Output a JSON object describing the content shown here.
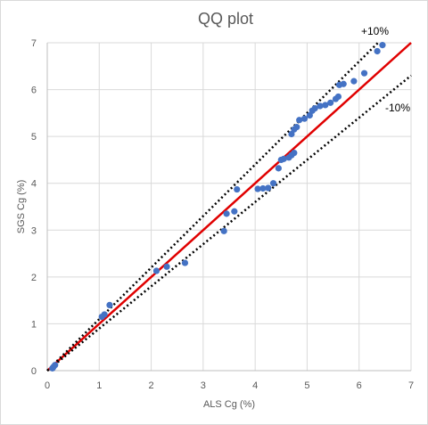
{
  "chart_data": {
    "type": "scatter",
    "title": "QQ plot",
    "xlabel": "ALS Cg (%)",
    "ylabel": "SGS Cg (%)",
    "xlim": [
      0,
      7
    ],
    "ylim": [
      0,
      7
    ],
    "xticks": [
      "0",
      "1",
      "2",
      "3",
      "4",
      "5",
      "6",
      "7"
    ],
    "yticks": [
      "0",
      "1",
      "2",
      "3",
      "4",
      "5",
      "6",
      "7"
    ],
    "grid": true,
    "colors": {
      "points": "#4472c4",
      "identity_line": "#e00000",
      "bounds": "#000000",
      "grid": "#d9d9d9"
    },
    "lines": [
      {
        "label": "",
        "slope": 1.0,
        "style": "solid"
      },
      {
        "label": "+10%",
        "slope": 1.1,
        "style": "dotted"
      },
      {
        "label": "-10%",
        "slope": 0.9,
        "style": "dotted"
      }
    ],
    "annotations": [
      "+10%",
      "-10%"
    ],
    "points": [
      {
        "x": 0.1,
        "y": 0.05
      },
      {
        "x": 0.12,
        "y": 0.08
      },
      {
        "x": 0.15,
        "y": 0.12
      },
      {
        "x": 1.05,
        "y": 1.15
      },
      {
        "x": 1.1,
        "y": 1.2
      },
      {
        "x": 1.2,
        "y": 1.4
      },
      {
        "x": 2.1,
        "y": 2.13
      },
      {
        "x": 2.3,
        "y": 2.22
      },
      {
        "x": 2.65,
        "y": 2.3
      },
      {
        "x": 3.4,
        "y": 2.98
      },
      {
        "x": 3.45,
        "y": 3.35
      },
      {
        "x": 3.6,
        "y": 3.4
      },
      {
        "x": 3.65,
        "y": 3.87
      },
      {
        "x": 4.05,
        "y": 3.88
      },
      {
        "x": 4.15,
        "y": 3.89
      },
      {
        "x": 4.25,
        "y": 3.9
      },
      {
        "x": 4.35,
        "y": 4.0
      },
      {
        "x": 4.45,
        "y": 4.32
      },
      {
        "x": 4.5,
        "y": 4.5
      },
      {
        "x": 4.55,
        "y": 4.52
      },
      {
        "x": 4.65,
        "y": 4.55
      },
      {
        "x": 4.7,
        "y": 4.6
      },
      {
        "x": 4.75,
        "y": 4.65
      },
      {
        "x": 4.7,
        "y": 5.05
      },
      {
        "x": 4.75,
        "y": 5.15
      },
      {
        "x": 4.8,
        "y": 5.2
      },
      {
        "x": 4.85,
        "y": 5.35
      },
      {
        "x": 4.95,
        "y": 5.38
      },
      {
        "x": 5.05,
        "y": 5.45
      },
      {
        "x": 5.1,
        "y": 5.55
      },
      {
        "x": 5.15,
        "y": 5.6
      },
      {
        "x": 5.25,
        "y": 5.65
      },
      {
        "x": 5.35,
        "y": 5.67
      },
      {
        "x": 5.45,
        "y": 5.72
      },
      {
        "x": 5.55,
        "y": 5.8
      },
      {
        "x": 5.6,
        "y": 5.85
      },
      {
        "x": 5.62,
        "y": 6.1
      },
      {
        "x": 5.7,
        "y": 6.12
      },
      {
        "x": 5.9,
        "y": 6.18
      },
      {
        "x": 6.1,
        "y": 6.35
      },
      {
        "x": 6.35,
        "y": 6.82
      },
      {
        "x": 6.45,
        "y": 6.95
      }
    ]
  }
}
